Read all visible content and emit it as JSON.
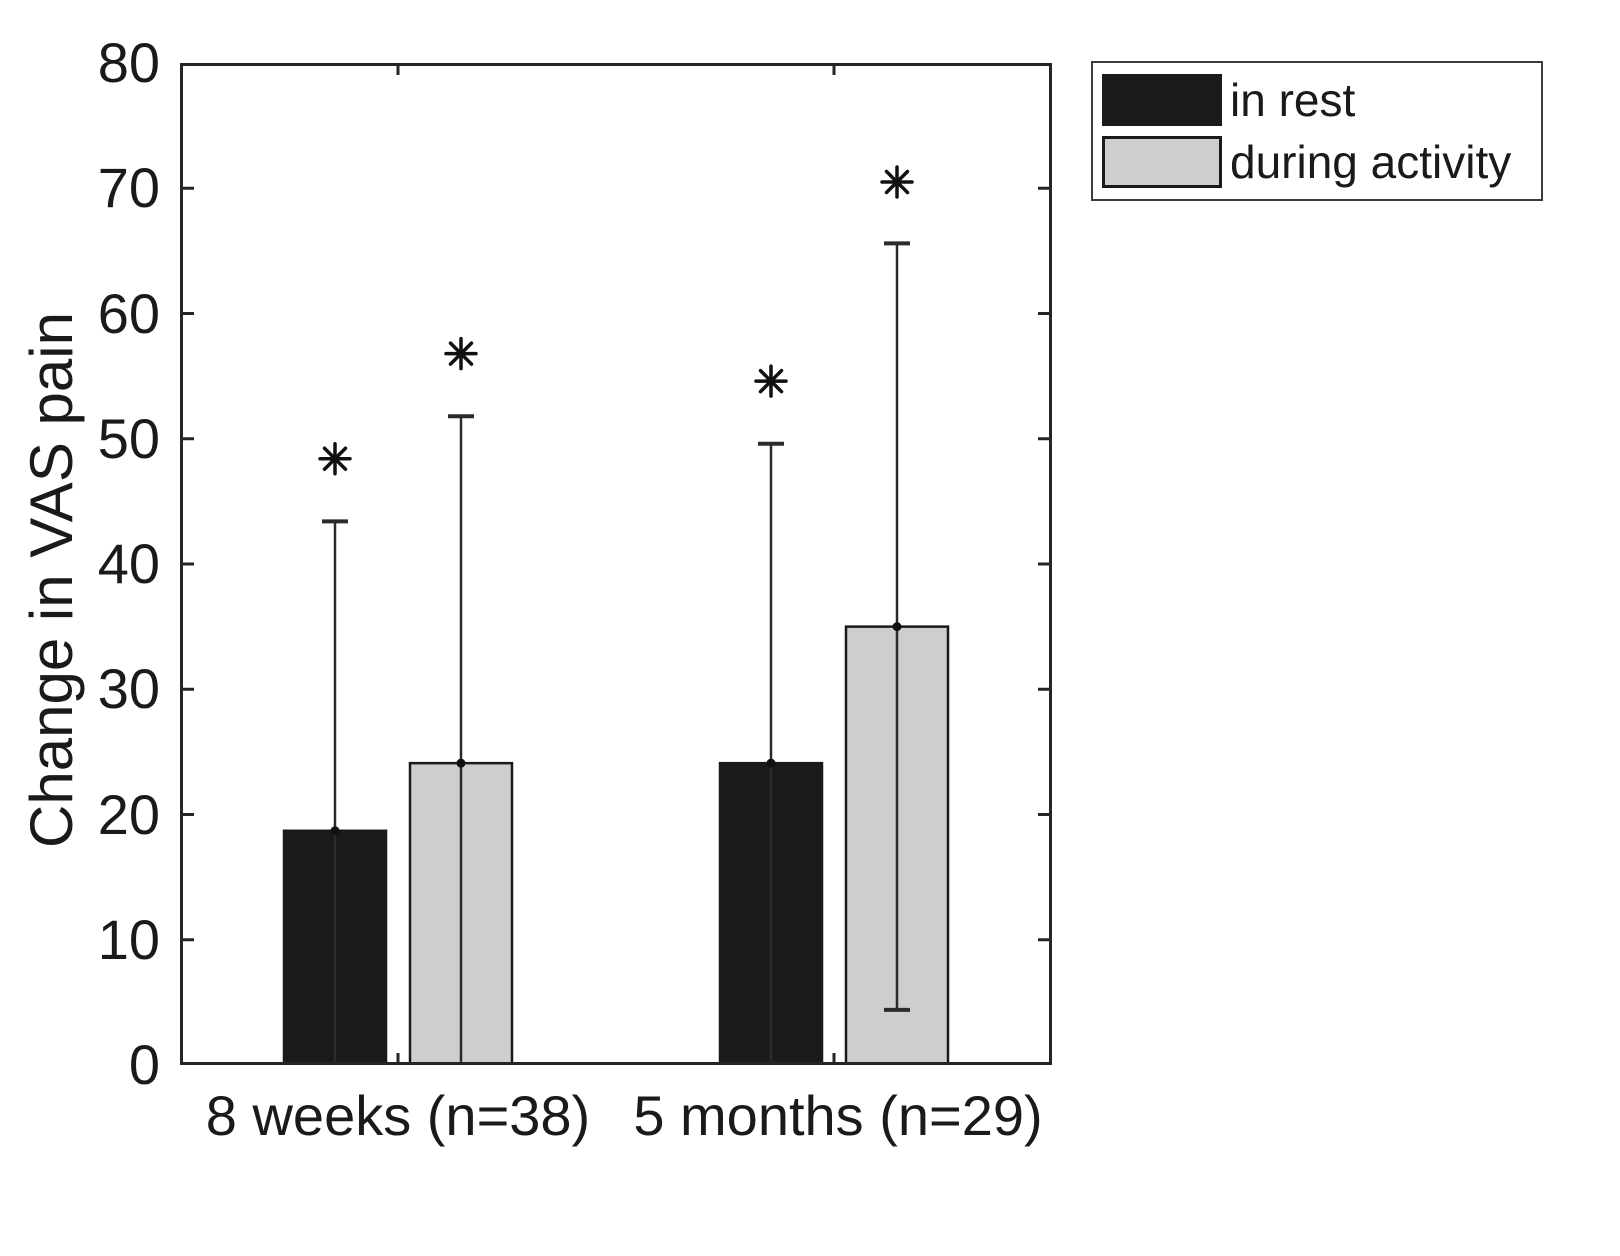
{
  "chart_data": {
    "type": "bar",
    "title": "",
    "ylabel": "Change in VAS pain",
    "xlabel": "",
    "ylim": [
      0,
      80
    ],
    "yticks": [
      0,
      10,
      20,
      30,
      40,
      50,
      60,
      70,
      80
    ],
    "categories": [
      "8 weeks (n=38)",
      "5 months (n=29)"
    ],
    "series": [
      {
        "name": "in rest",
        "color": "#1a1a1a",
        "values": [
          18.7,
          24.1
        ],
        "sd": [
          24.7,
          25.5
        ]
      },
      {
        "name": "during activity",
        "color": "#cecece",
        "values": [
          24.1,
          35.0
        ],
        "sd": [
          27.7,
          30.6
        ]
      }
    ],
    "error_bar_style": "mean plus-minus SD, lower caps clipped below 0",
    "significance_markers": [
      {
        "category_index": 0,
        "series_index": 0,
        "symbol": "*",
        "y": 48.4
      },
      {
        "category_index": 0,
        "series_index": 1,
        "symbol": "*",
        "y": 56.8
      },
      {
        "category_index": 1,
        "series_index": 0,
        "symbol": "*",
        "y": 54.6
      },
      {
        "category_index": 1,
        "series_index": 1,
        "symbol": "*",
        "y": 70.5
      }
    ],
    "legend": {
      "position": "outside-top-right",
      "entries": [
        "in rest",
        "during activity"
      ]
    },
    "grid": false,
    "colors": {
      "axis": "#262626",
      "bar_edge": "#1a1a1a",
      "errorbar": "#2b2b2b",
      "text": "#1a1a1a",
      "background": "#ffffff"
    }
  }
}
